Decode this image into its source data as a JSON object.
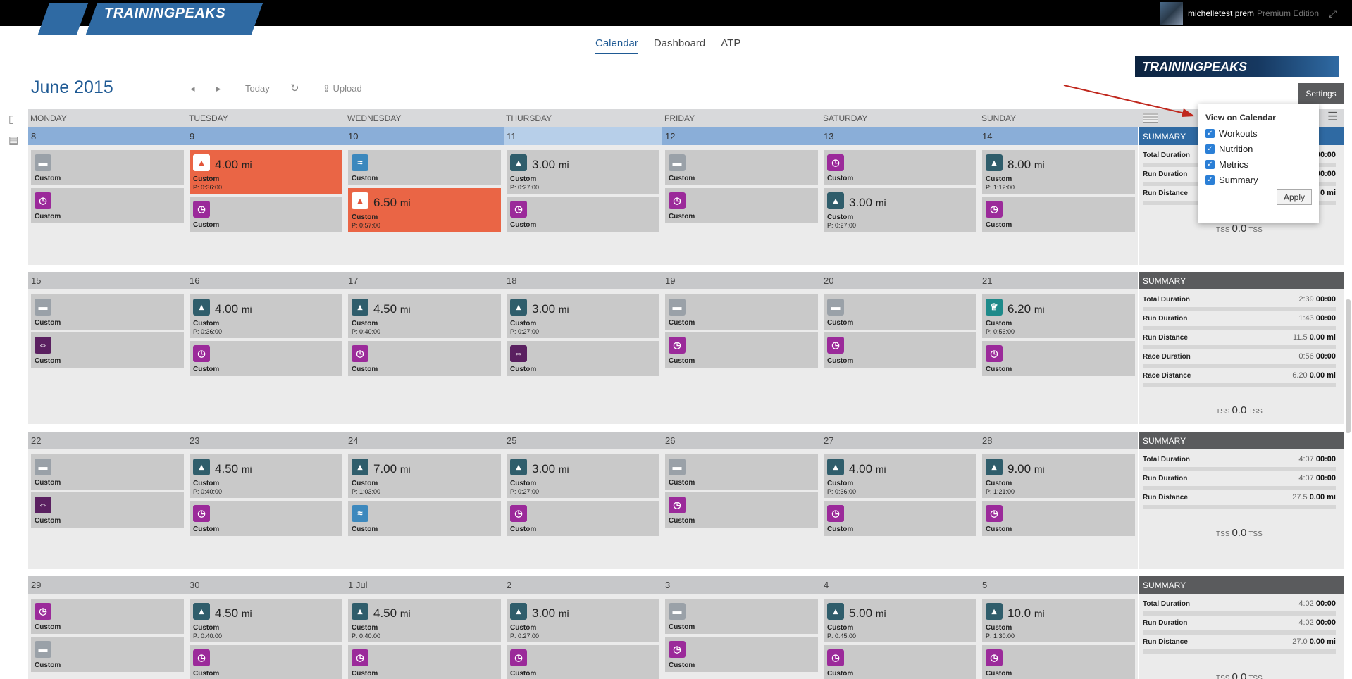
{
  "app": {
    "logo": "TRAININGPEAKS",
    "user_name": "michelletest prem",
    "edition": "Premium Edition"
  },
  "nav": {
    "tabs": [
      {
        "label": "Calendar"
      },
      {
        "label": "Dashboard"
      },
      {
        "label": "ATP"
      }
    ]
  },
  "brand_banner": "TRAININGPEAKS",
  "toolbar": {
    "month": "June 2015",
    "today": "Today",
    "upload": "Upload"
  },
  "settings": {
    "label": "Settings",
    "title": "View on Calendar",
    "options": [
      {
        "label": "Workouts",
        "checked": true
      },
      {
        "label": "Nutrition",
        "checked": true
      },
      {
        "label": "Metrics",
        "checked": true
      },
      {
        "label": "Summary",
        "checked": true
      }
    ],
    "apply": "Apply"
  },
  "days": [
    "MONDAY",
    "TUESDAY",
    "WEDNESDAY",
    "THURSDAY",
    "FRIDAY",
    "SATURDAY",
    "SUNDAY"
  ],
  "colors": {
    "completed_red": "#ea6545",
    "summary_gray": "#5a5b5d",
    "accent_blue": "#2f6aa3"
  },
  "weeks": [
    {
      "dates": [
        "8",
        "9",
        "10",
        "11",
        "12",
        "13",
        "14"
      ],
      "cells": [
        [
          {
            "icon": "strength-icon",
            "label": "Custom"
          },
          {
            "icon": "stopwatch-icon",
            "label": "Custom"
          }
        ],
        [
          {
            "icon": "run-icon",
            "dist": "4.00",
            "unit": "mi",
            "label": "Custom",
            "plan": "P: 0:36:00",
            "style": "red"
          },
          {
            "icon": "stopwatch-icon",
            "label": "Custom"
          }
        ],
        [
          {
            "icon": "swim-icon",
            "label": "Custom"
          },
          {
            "icon": "run-icon",
            "dist": "6.50",
            "unit": "mi",
            "label": "Custom",
            "plan": "P: 0:57:00",
            "style": "red"
          }
        ],
        [
          {
            "icon": "run-icon",
            "dist": "3.00",
            "unit": "mi",
            "label": "Custom",
            "plan": "P: 0:27:00"
          },
          {
            "icon": "stopwatch-icon",
            "label": "Custom"
          }
        ],
        [
          {
            "icon": "strength-icon",
            "label": "Custom"
          },
          {
            "icon": "stopwatch-icon",
            "label": "Custom"
          }
        ],
        [
          {
            "icon": "stopwatch-icon",
            "label": "Custom"
          },
          {
            "icon": "run-icon",
            "dist": "3.00",
            "unit": "mi",
            "label": "Custom",
            "plan": "P: 0:27:00"
          }
        ],
        [
          {
            "icon": "run-icon",
            "dist": "8.00",
            "unit": "mi",
            "label": "Custom",
            "plan": "P: 1:12:00"
          },
          {
            "icon": "stopwatch-icon",
            "label": "Custom"
          }
        ]
      ],
      "summary": {
        "title": "SUMMARY",
        "rows": [
          {
            "k": "Total Duration",
            "v1": "",
            "v2": "00:00"
          },
          {
            "k": "Run Duration",
            "v1": "",
            "v2": "00:00"
          },
          {
            "k": "Run Distance",
            "v1": "",
            "v2": "0 mi"
          }
        ],
        "tss": "0.0",
        "tss_label": "TSS"
      }
    },
    {
      "dates": [
        "15",
        "16",
        "17",
        "18",
        "19",
        "20",
        "21"
      ],
      "cells": [
        [
          {
            "icon": "strength-icon",
            "label": "Custom"
          },
          {
            "icon": "dumbbell-icon",
            "label": "Custom"
          }
        ],
        [
          {
            "icon": "run-icon",
            "dist": "4.00",
            "unit": "mi",
            "label": "Custom",
            "plan": "P: 0:36:00"
          },
          {
            "icon": "stopwatch-icon",
            "label": "Custom"
          }
        ],
        [
          {
            "icon": "run-icon",
            "dist": "4.50",
            "unit": "mi",
            "label": "Custom",
            "plan": "P: 0:40:00"
          },
          {
            "icon": "stopwatch-icon",
            "label": "Custom"
          }
        ],
        [
          {
            "icon": "run-icon",
            "dist": "3.00",
            "unit": "mi",
            "label": "Custom",
            "plan": "P: 0:27:00"
          },
          {
            "icon": "dumbbell-icon",
            "label": "Custom"
          }
        ],
        [
          {
            "icon": "strength-icon",
            "label": "Custom"
          },
          {
            "icon": "stopwatch-icon",
            "label": "Custom"
          }
        ],
        [
          {
            "icon": "strength-icon",
            "label": "Custom"
          },
          {
            "icon": "stopwatch-icon",
            "label": "Custom"
          }
        ],
        [
          {
            "icon": "trophy-icon",
            "dist": "6.20",
            "unit": "mi",
            "label": "Custom",
            "plan": "P: 0:56:00"
          },
          {
            "icon": "stopwatch-icon",
            "label": "Custom"
          }
        ]
      ],
      "summary": {
        "title": "SUMMARY",
        "rows": [
          {
            "k": "Total Duration",
            "v1": "2:39",
            "v2": "00:00"
          },
          {
            "k": "Run Duration",
            "v1": "1:43",
            "v2": "00:00"
          },
          {
            "k": "Run Distance",
            "v1": "11.5",
            "v2": "0.00 mi"
          },
          {
            "k": "Race Duration",
            "v1": "0:56",
            "v2": "00:00"
          },
          {
            "k": "Race Distance",
            "v1": "6.20",
            "v2": "0.00 mi"
          }
        ],
        "tss": "0.0",
        "tss_label": "TSS"
      }
    },
    {
      "dates": [
        "22",
        "23",
        "24",
        "25",
        "26",
        "27",
        "28"
      ],
      "cells": [
        [
          {
            "icon": "strength-icon",
            "label": "Custom"
          },
          {
            "icon": "dumbbell-icon",
            "label": "Custom"
          }
        ],
        [
          {
            "icon": "run-icon",
            "dist": "4.50",
            "unit": "mi",
            "label": "Custom",
            "plan": "P: 0:40:00"
          },
          {
            "icon": "stopwatch-icon",
            "label": "Custom"
          }
        ],
        [
          {
            "icon": "run-icon",
            "dist": "7.00",
            "unit": "mi",
            "label": "Custom",
            "plan": "P: 1:03:00"
          },
          {
            "icon": "swim-icon",
            "label": "Custom"
          }
        ],
        [
          {
            "icon": "run-icon",
            "dist": "3.00",
            "unit": "mi",
            "label": "Custom",
            "plan": "P: 0:27:00"
          },
          {
            "icon": "stopwatch-icon",
            "label": "Custom"
          }
        ],
        [
          {
            "icon": "strength-icon",
            "label": "Custom"
          },
          {
            "icon": "stopwatch-icon",
            "label": "Custom"
          }
        ],
        [
          {
            "icon": "run-icon",
            "dist": "4.00",
            "unit": "mi",
            "label": "Custom",
            "plan": "P: 0:36:00"
          },
          {
            "icon": "stopwatch-icon",
            "label": "Custom"
          }
        ],
        [
          {
            "icon": "run-icon",
            "dist": "9.00",
            "unit": "mi",
            "label": "Custom",
            "plan": "P: 1:21:00"
          },
          {
            "icon": "stopwatch-icon",
            "label": "Custom"
          }
        ]
      ],
      "summary": {
        "title": "SUMMARY",
        "rows": [
          {
            "k": "Total Duration",
            "v1": "4:07",
            "v2": "00:00"
          },
          {
            "k": "Run Duration",
            "v1": "4:07",
            "v2": "00:00"
          },
          {
            "k": "Run Distance",
            "v1": "27.5",
            "v2": "0.00 mi"
          }
        ],
        "tss": "0.0",
        "tss_label": "TSS"
      }
    },
    {
      "dates": [
        "29",
        "30",
        "1 Jul",
        "2",
        "3",
        "4",
        "5"
      ],
      "cells": [
        [
          {
            "icon": "stopwatch-icon",
            "label": "Custom"
          },
          {
            "icon": "strength-icon",
            "label": "Custom"
          }
        ],
        [
          {
            "icon": "run-icon",
            "dist": "4.50",
            "unit": "mi",
            "label": "Custom",
            "plan": "P: 0:40:00"
          },
          {
            "icon": "stopwatch-icon",
            "label": "Custom"
          }
        ],
        [
          {
            "icon": "run-icon",
            "dist": "4.50",
            "unit": "mi",
            "label": "Custom",
            "plan": "P: 0:40:00"
          },
          {
            "icon": "stopwatch-icon",
            "label": "Custom"
          }
        ],
        [
          {
            "icon": "run-icon",
            "dist": "3.00",
            "unit": "mi",
            "label": "Custom",
            "plan": "P: 0:27:00"
          },
          {
            "icon": "stopwatch-icon",
            "label": "Custom"
          }
        ],
        [
          {
            "icon": "strength-icon",
            "label": "Custom"
          },
          {
            "icon": "stopwatch-icon",
            "label": "Custom"
          }
        ],
        [
          {
            "icon": "run-icon",
            "dist": "5.00",
            "unit": "mi",
            "label": "Custom",
            "plan": "P: 0:45:00"
          },
          {
            "icon": "stopwatch-icon",
            "label": "Custom"
          }
        ],
        [
          {
            "icon": "run-icon",
            "dist": "10.0",
            "unit": "mi",
            "label": "Custom",
            "plan": "P: 1:30:00"
          },
          {
            "icon": "stopwatch-icon",
            "label": "Custom"
          }
        ]
      ],
      "summary": {
        "title": "SUMMARY",
        "rows": [
          {
            "k": "Total Duration",
            "v1": "4:02",
            "v2": "00:00"
          },
          {
            "k": "Run Duration",
            "v1": "4:02",
            "v2": "00:00"
          },
          {
            "k": "Run Distance",
            "v1": "27.0",
            "v2": "0.00 mi"
          }
        ],
        "tss": "0.0",
        "tss_label": "TSS"
      }
    }
  ]
}
